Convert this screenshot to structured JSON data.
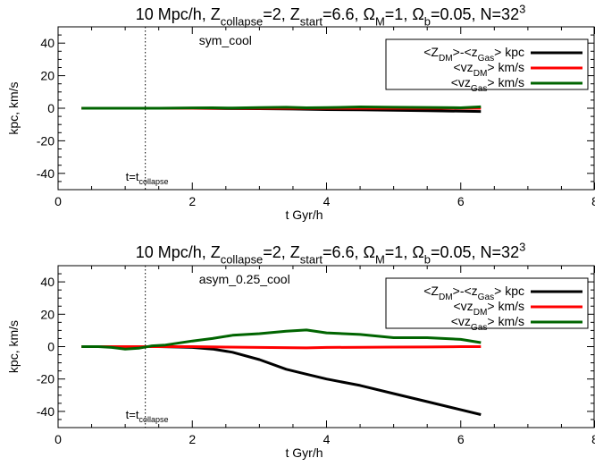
{
  "chart_data": [
    {
      "type": "line",
      "title": "10 Mpc/h, Z_collapse=2, Z_start=6.6, Ω_M=1, Ω_b=0.05, N=32^3",
      "title_parts": [
        {
          "t": "10 Mpc/h, Z"
        },
        {
          "t": "collapse",
          "sub": true
        },
        {
          "t": "=2, Z"
        },
        {
          "t": "start",
          "sub": true
        },
        {
          "t": "=6.6, Ω"
        },
        {
          "t": "M",
          "sub": true
        },
        {
          "t": "=1, Ω"
        },
        {
          "t": "b",
          "sub": true
        },
        {
          "t": "=0.05, N=32"
        },
        {
          "t": "3",
          "sup": true
        }
      ],
      "panel_label": "sym_cool",
      "xlabel": "t Gyr/h",
      "ylabel": "kpc, km/s",
      "xlim": [
        0,
        8
      ],
      "ylim": [
        -50,
        50
      ],
      "xticks": [
        0,
        2,
        4,
        6,
        8
      ],
      "yticks": [
        -40,
        -20,
        0,
        20,
        40
      ],
      "vline": {
        "x": 1.3,
        "label": "t=t",
        "label_sub": "collapse"
      },
      "legend_position": "top-right",
      "series": [
        {
          "name": "<Z_DM>-<z_Gas> kpc",
          "name_parts": [
            {
              "t": "<Z"
            },
            {
              "t": "DM",
              "sub": true
            },
            {
              "t": ">-<z"
            },
            {
              "t": "Gas",
              "sub": true
            },
            {
              "t": "> kpc"
            }
          ],
          "color": "#000000",
          "x": [
            0.35,
            1.0,
            1.5,
            2.0,
            2.5,
            3.0,
            3.5,
            4.0,
            4.5,
            5.0,
            5.5,
            6.0,
            6.3
          ],
          "y": [
            0,
            0,
            0,
            0,
            -0.2,
            -0.3,
            -0.5,
            -0.8,
            -1.0,
            -1.2,
            -1.5,
            -1.8,
            -2.0
          ]
        },
        {
          "name": "<vz_DM> km/s",
          "name_parts": [
            {
              "t": "<vz"
            },
            {
              "t": "DM",
              "sub": true
            },
            {
              "t": "> km/s"
            }
          ],
          "color": "#ff0000",
          "x": [
            0.35,
            1.0,
            1.5,
            2.0,
            2.5,
            3.0,
            3.5,
            4.0,
            4.5,
            5.0,
            5.5,
            6.0,
            6.3
          ],
          "y": [
            0,
            0,
            0,
            0,
            0,
            0,
            0,
            0,
            0,
            0,
            0,
            0,
            0
          ]
        },
        {
          "name": "<vz_Gas> km/s",
          "name_parts": [
            {
              "t": "<vz"
            },
            {
              "t": "Gas",
              "sub": true
            },
            {
              "t": "> km/s"
            }
          ],
          "color": "#006400",
          "x": [
            0.35,
            1.0,
            1.5,
            2.0,
            2.3,
            2.6,
            3.0,
            3.4,
            3.7,
            4.0,
            4.5,
            5.0,
            5.5,
            6.0,
            6.3
          ],
          "y": [
            0,
            0,
            0,
            0.2,
            0.3,
            0.1,
            0.4,
            0.6,
            0.3,
            0.4,
            0.8,
            0.6,
            0.5,
            0.3,
            0.9
          ]
        }
      ]
    },
    {
      "type": "line",
      "title": "10 Mpc/h, Z_collapse=2, Z_start=6.6, Ω_M=1, Ω_b=0.05, N=32^3",
      "title_parts": [
        {
          "t": "10 Mpc/h, Z"
        },
        {
          "t": "collapse",
          "sub": true
        },
        {
          "t": "=2, Z"
        },
        {
          "t": "start",
          "sub": true
        },
        {
          "t": "=6.6, Ω"
        },
        {
          "t": "M",
          "sub": true
        },
        {
          "t": "=1, Ω"
        },
        {
          "t": "b",
          "sub": true
        },
        {
          "t": "=0.05, N=32"
        },
        {
          "t": "3",
          "sup": true
        }
      ],
      "panel_label": "asym_0.25_cool",
      "xlabel": "t Gyr/h",
      "ylabel": "kpc, km/s",
      "xlim": [
        0,
        8
      ],
      "ylim": [
        -50,
        50
      ],
      "xticks": [
        0,
        2,
        4,
        6,
        8
      ],
      "yticks": [
        -40,
        -20,
        0,
        20,
        40
      ],
      "vline": {
        "x": 1.3,
        "label": "t=t",
        "label_sub": "collapse"
      },
      "legend_position": "top-right",
      "series": [
        {
          "name": "<Z_DM>-<z_Gas> kpc",
          "name_parts": [
            {
              "t": "<Z"
            },
            {
              "t": "DM",
              "sub": true
            },
            {
              "t": ">-<z"
            },
            {
              "t": "Gas",
              "sub": true
            },
            {
              "t": "> kpc"
            }
          ],
          "color": "#000000",
          "x": [
            0.35,
            0.8,
            1.2,
            1.5,
            1.8,
            2.0,
            2.3,
            2.6,
            3.0,
            3.4,
            3.7,
            4.0,
            4.5,
            5.0,
            5.5,
            6.0,
            6.3
          ],
          "y": [
            0,
            0,
            0,
            0,
            -0.3,
            -0.5,
            -1.5,
            -3.5,
            -8,
            -14,
            -17,
            -20,
            -24,
            -29,
            -34,
            -39,
            -42
          ]
        },
        {
          "name": "<vz_DM> km/s",
          "name_parts": [
            {
              "t": "<vz"
            },
            {
              "t": "DM",
              "sub": true
            },
            {
              "t": "> km/s"
            }
          ],
          "color": "#ff0000",
          "x": [
            0.35,
            0.7,
            1.0,
            1.3,
            1.6,
            2.0,
            2.5,
            3.0,
            3.7,
            4.0,
            4.5,
            5.0,
            5.5,
            6.0,
            6.3
          ],
          "y": [
            0,
            0,
            0,
            0,
            0,
            0,
            -0.3,
            -0.5,
            -0.8,
            -0.5,
            -0.4,
            -0.3,
            -0.2,
            0,
            0
          ]
        },
        {
          "name": "<vz_Gas> km/s",
          "name_parts": [
            {
              "t": "<vz"
            },
            {
              "t": "Gas",
              "sub": true
            },
            {
              "t": "> km/s"
            }
          ],
          "color": "#006400",
          "x": [
            0.35,
            0.6,
            0.8,
            1.0,
            1.2,
            1.4,
            1.6,
            2.0,
            2.3,
            2.6,
            3.0,
            3.4,
            3.7,
            4.0,
            4.5,
            5.0,
            5.5,
            6.0,
            6.3
          ],
          "y": [
            0,
            0,
            -0.5,
            -1.5,
            -1,
            0.5,
            1,
            3.5,
            5,
            7,
            8,
            9.5,
            10.3,
            8.5,
            7.5,
            5.5,
            5.5,
            4.5,
            2.5
          ]
        }
      ]
    }
  ]
}
